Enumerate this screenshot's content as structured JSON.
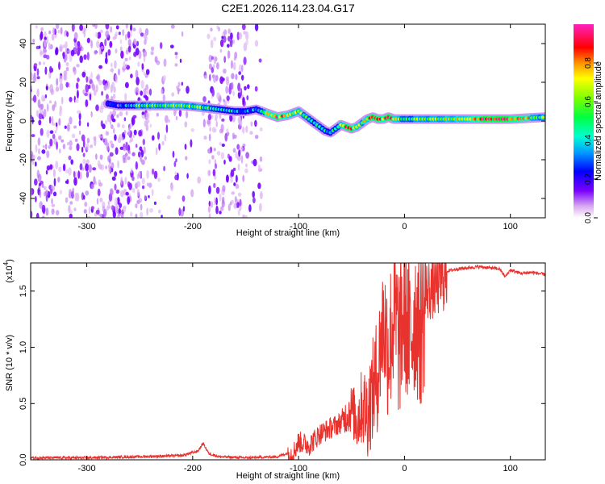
{
  "title": "C2E1.2026.114.23.04.G17",
  "chart_data": [
    {
      "type": "heatmap",
      "xlabel": "Height of straight line (km)",
      "ylabel": "Frequency (Hz)",
      "xlim": [
        -353,
        133
      ],
      "ylim": [
        -50,
        50
      ],
      "xticks": [
        -300,
        -200,
        -100,
        0,
        100
      ],
      "xtick_labels": [
        "-300",
        "-200",
        "-100",
        "0",
        "100"
      ],
      "yticks": [
        -40,
        -20,
        0,
        20,
        40
      ],
      "ytick_labels": [
        "-40",
        "-20",
        "0",
        "20",
        "40"
      ],
      "colorbar": {
        "label": "Normalized spectral amplitude",
        "range": [
          0,
          1
        ],
        "ticks": [
          0.0,
          0.2,
          0.4,
          0.6,
          0.8
        ],
        "tick_labels": [
          "0.0",
          "0.2",
          "0.4",
          "0.6",
          "0.8"
        ]
      },
      "ridge": {
        "x": [
          -280,
          -270,
          -250,
          -230,
          -210,
          -190,
          -175,
          -160,
          -150,
          -140,
          -130,
          -120,
          -110,
          -100,
          -95,
          -90,
          -85,
          -80,
          -75,
          -70,
          -65,
          -60,
          -55,
          -50,
          -45,
          -40,
          -35,
          -30,
          -25,
          -20,
          -15,
          -10,
          -5,
          0,
          20,
          40,
          60,
          80,
          100,
          133
        ],
        "freq": [
          9,
          8,
          8,
          8,
          8,
          7,
          6,
          5,
          5,
          6,
          4,
          2,
          3,
          5,
          3,
          1,
          -1,
          -3,
          -5,
          -6,
          -4,
          -2,
          -3,
          -4,
          -3,
          -1,
          1,
          2,
          1,
          1,
          2,
          1,
          1,
          1,
          1,
          1,
          1,
          1,
          1,
          2
        ],
        "amplitude": [
          0.3,
          0.2,
          0.55,
          0.6,
          0.65,
          0.6,
          0.5,
          0.3,
          0.35,
          0.3,
          0.75,
          0.85,
          0.7,
          0.7,
          0.6,
          0.55,
          0.5,
          0.55,
          0.45,
          0.4,
          0.5,
          0.6,
          0.85,
          0.9,
          0.7,
          0.6,
          0.75,
          0.9,
          0.85,
          0.8,
          0.95,
          0.7,
          0.6,
          0.55,
          0.6,
          0.65,
          0.7,
          0.95,
          0.9,
          0.55
        ]
      }
    },
    {
      "type": "line",
      "xlabel": "Height of straight line (km)",
      "ylabel": "SNR (10 * v/v)",
      "y_multiplier": "(x10",
      "y_multiplier_exp": "4",
      "xlim": [
        -353,
        133
      ],
      "ylim": [
        0,
        1.75
      ],
      "xticks": [
        -300,
        -200,
        -100,
        0,
        100
      ],
      "xtick_labels": [
        "-300",
        "-200",
        "-100",
        "0",
        "100"
      ],
      "yticks": [
        0.0,
        0.5,
        1.0,
        1.5
      ],
      "ytick_labels": [
        "0.0",
        "0.5",
        "1.0",
        "1.5"
      ],
      "series": [
        {
          "name": "SNR",
          "color": "#e8322e",
          "x": [
            -353,
            -300,
            -250,
            -210,
            -195,
            -190,
            -185,
            -175,
            -150,
            -120,
            -105,
            -100,
            -90,
            -80,
            -70,
            -60,
            -50,
            -45,
            -40,
            -35,
            -30,
            -25,
            -20,
            -15,
            -10,
            -5,
            0,
            5,
            10,
            15,
            20,
            30,
            40,
            50,
            70,
            90,
            95,
            100,
            110,
            120,
            133
          ],
          "y": [
            0.02,
            0.02,
            0.03,
            0.04,
            0.08,
            0.15,
            0.06,
            0.03,
            0.02,
            0.03,
            0.08,
            0.18,
            0.15,
            0.25,
            0.3,
            0.35,
            0.5,
            0.4,
            0.55,
            0.5,
            0.7,
            0.9,
            1.35,
            1.1,
            1.45,
            1.2,
            1.5,
            1.2,
            1.45,
            1.3,
            1.55,
            1.6,
            1.68,
            1.7,
            1.72,
            1.7,
            1.63,
            1.69,
            1.66,
            1.67,
            1.65
          ]
        }
      ]
    }
  ]
}
